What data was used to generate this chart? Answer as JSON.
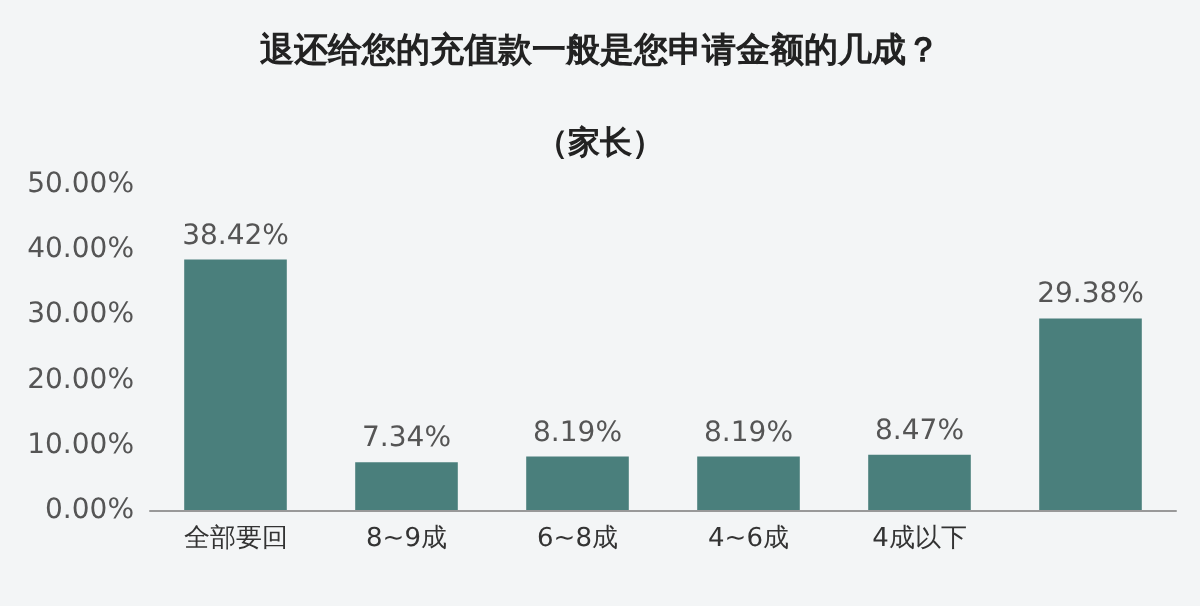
{
  "chart_data": {
    "type": "bar",
    "title": "退还给您的充值款一般是您申请金额的几成？",
    "subtitle": "（家长）",
    "categories": [
      "全部要回",
      "8~9成",
      "6~8成",
      "4~6成",
      "4成以下",
      null
    ],
    "values": [
      38.42,
      7.34,
      8.19,
      8.19,
      8.47,
      29.38
    ],
    "value_labels": [
      "38.42%",
      "7.34%",
      "8.19%",
      "8.19%",
      "8.47%",
      "29.38%"
    ],
    "color": "#4a7f7c",
    "ylim": [
      0,
      50
    ],
    "yticks": [
      {
        "value": 0,
        "label": "0.00%"
      },
      {
        "value": 10,
        "label": "10.00%"
      },
      {
        "value": 20,
        "label": "20.00%"
      },
      {
        "value": 30,
        "label": "30.00%"
      },
      {
        "value": 40,
        "label": "40.00%"
      },
      {
        "value": 50,
        "label": "50.00%"
      }
    ],
    "grid": false
  }
}
